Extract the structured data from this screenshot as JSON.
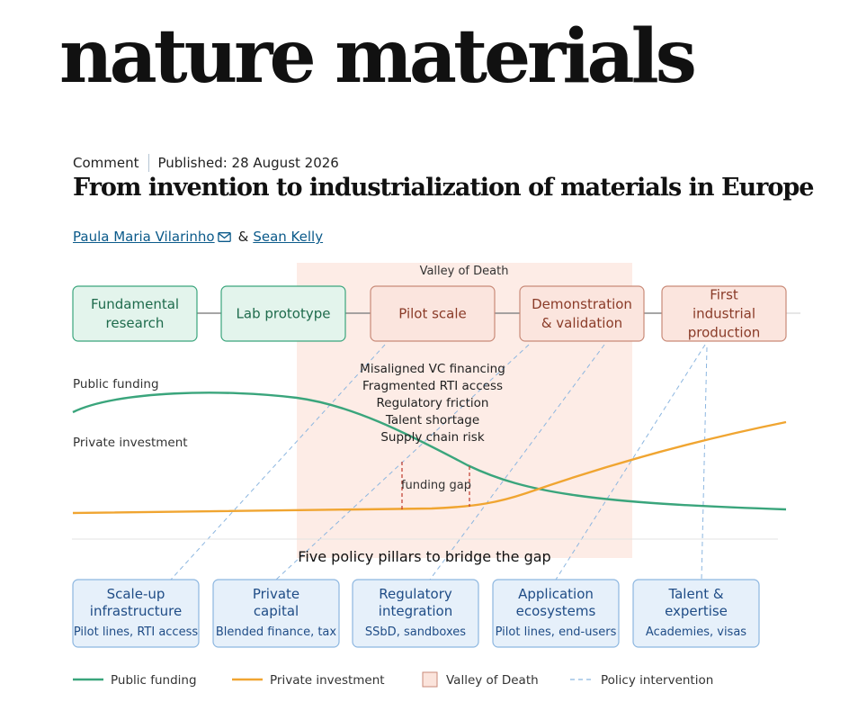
{
  "journal": "nature materials",
  "article": {
    "type": "Comment",
    "published": "Published: 28 August 2026",
    "title": "From invention to industrialization of materials in Europe",
    "authors": [
      "Paula Maria Vilarinho",
      "Sean Kelly"
    ],
    "author_separator": "&"
  },
  "figure": {
    "valley_label": "Valley of Death",
    "stages": [
      "Fundamental research",
      "Lab prototype",
      "Pilot scale",
      "Demonstration & validation",
      "First industrial production"
    ],
    "barriers": [
      "Misaligned VC financing",
      "Fragmented RTI access",
      "Regulatory friction",
      "Talent shortage",
      "Supply chain risk"
    ],
    "public_label": "Public funding",
    "private_label": "Private investment",
    "gap_label": "funding gap",
    "pillars_title": "Five policy pillars to bridge the gap",
    "pillars": [
      {
        "title": "Scale-up infrastructure",
        "subtitle": "Pilot lines, RTI access"
      },
      {
        "title": "Private capital",
        "subtitle": "Blended finance, tax"
      },
      {
        "title": "Regulatory integration",
        "subtitle": "SSbD, sandboxes"
      },
      {
        "title": "Application ecosystems",
        "subtitle": "Pilot lines, end-users"
      },
      {
        "title": "Talent & expertise",
        "subtitle": "Academies, visas"
      }
    ],
    "legend": [
      {
        "label": "Public funding",
        "color": "#3aa57c",
        "kind": "line"
      },
      {
        "label": "Private investment",
        "color": "#f0a531",
        "kind": "line"
      },
      {
        "label": "Valley of Death",
        "color": "#fbe4dc",
        "kind": "box"
      },
      {
        "label": "Policy intervention",
        "color": "#8cb6e0",
        "kind": "dash"
      }
    ],
    "colors": {
      "valley_fill": "#fdece6",
      "green_fill": "#e3f4ec",
      "green_stroke": "#3aa57c",
      "green_text": "#1e6b4c",
      "red_fill": "#fbe5de",
      "red_stroke": "#c98a78",
      "red_text": "#8a3b28",
      "blue_fill": "#e6f0fa",
      "blue_stroke": "#8cb6e0",
      "blue_text": "#1f4c86",
      "public_line": "#3aa57c",
      "private_line": "#f0a531",
      "gap_marker": "#c0392b",
      "dash_line": "#8cb6e0"
    }
  }
}
